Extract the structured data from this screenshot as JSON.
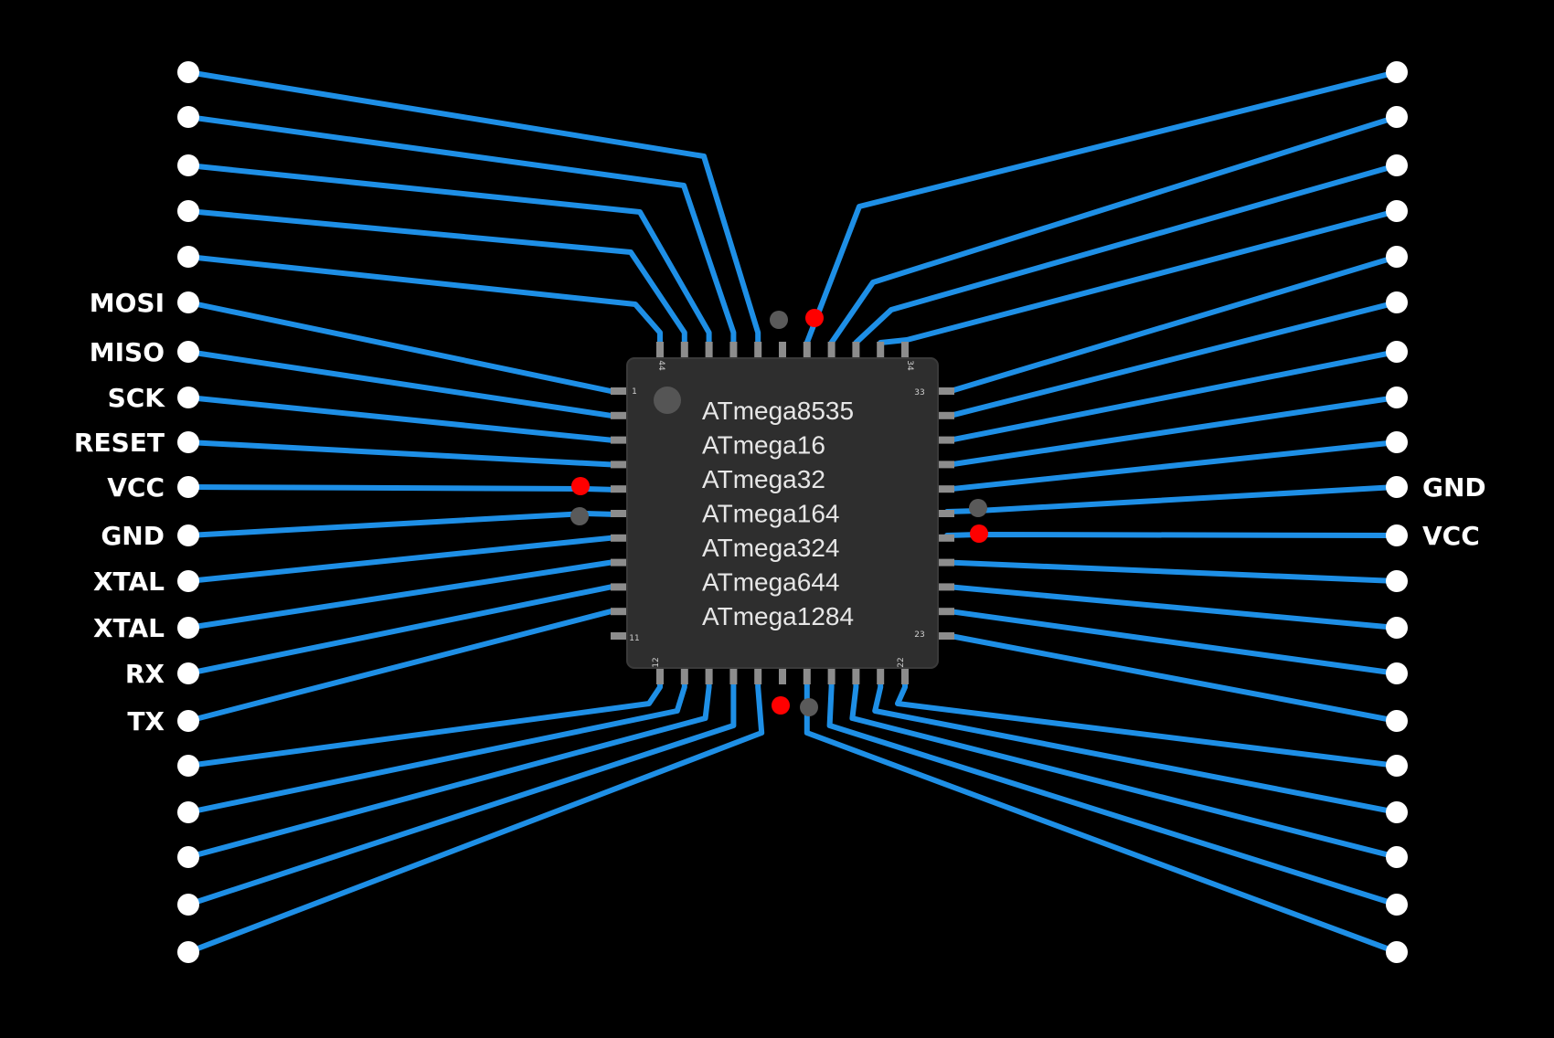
{
  "colors": {
    "background": "#000000",
    "wire": "#1e8fe6",
    "pad": "#ffffff",
    "chip_body": "#2e2e2e",
    "chip_pin": "#8c8c8c",
    "vcc_dot": "#ff0000",
    "gnd_dot": "#5a5a5a"
  },
  "chip": {
    "part_names": [
      "ATmega8535",
      "ATmega16",
      "ATmega32",
      "ATmega164",
      "ATmega324",
      "ATmega644",
      "ATmega1284"
    ],
    "pin_numbers": {
      "left_top": "1",
      "left_bottom": "11",
      "bottom_left": "12",
      "bottom_right": "22",
      "right_bottom": "23",
      "right_top": "33",
      "top_right": "34",
      "top_left": "44"
    }
  },
  "left_labels": [
    "",
    "",
    "",
    "",
    "",
    "MOSI",
    "MISO",
    "SCK",
    "RESET",
    "VCC",
    "GND",
    "XTAL",
    "XTAL",
    "RX",
    "TX",
    "",
    "",
    "",
    "",
    ""
  ],
  "right_labels": [
    "",
    "",
    "",
    "",
    "",
    "",
    "",
    "",
    "",
    "GND",
    "VCC",
    "",
    "",
    "",
    "",
    "",
    "",
    "",
    "",
    ""
  ],
  "power_markers": [
    "vcc",
    "gnd",
    "vcc",
    "gnd",
    "gnd",
    "vcc",
    "vcc",
    "gnd"
  ]
}
